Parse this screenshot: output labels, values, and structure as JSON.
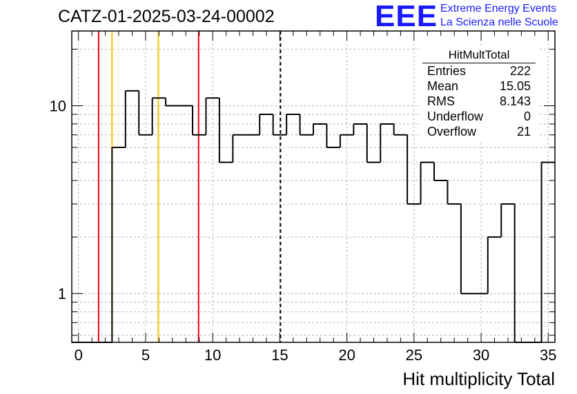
{
  "title": "CATZ-01-2025-03-24-00002",
  "logo": {
    "mark": "EEE",
    "line1": "Extreme Energy Events",
    "line2": "La Scienza nelle Scuole",
    "color": "#1a1aff"
  },
  "stats": {
    "title": "HitMultTotal",
    "rows": [
      {
        "key": "Entries",
        "value": "222"
      },
      {
        "key": "Mean",
        "value": "15.05"
      },
      {
        "key": "RMS",
        "value": "8.143"
      },
      {
        "key": "Underflow",
        "value": "0"
      },
      {
        "key": "Overflow",
        "value": "21"
      }
    ]
  },
  "chart_data": {
    "type": "histogram",
    "xlabel": "Hit multiplicity Total",
    "ylabel": "",
    "xlim": [
      -0.5,
      35.5
    ],
    "ylim": [
      0.55,
      25
    ],
    "yscale": "log",
    "grid": true,
    "bin_edges_start": -0.5,
    "bin_width": 1,
    "counts": [
      0,
      0,
      0,
      6,
      12,
      7,
      11,
      10,
      10,
      7,
      11,
      5,
      7,
      7,
      9,
      7,
      9,
      7,
      8,
      6,
      7,
      8,
      5,
      8,
      7,
      3,
      5,
      4,
      3,
      1,
      1,
      2,
      3,
      0,
      0,
      5
    ],
    "x_ticks": [
      "0",
      "5",
      "10",
      "15",
      "20",
      "25",
      "30",
      "35"
    ],
    "x_tick_values": [
      0,
      5,
      10,
      15,
      20,
      25,
      30,
      35
    ],
    "y_ticks": [
      "1",
      "10"
    ],
    "y_tick_values": [
      1,
      10
    ],
    "vertical_lines": [
      {
        "x": 1.5,
        "color": "#e8000b",
        "style": "solid"
      },
      {
        "x": 2.5,
        "color": "#f5c400",
        "style": "solid"
      },
      {
        "x": 5.95,
        "color": "#f5c400",
        "style": "solid"
      },
      {
        "x": 8.95,
        "color": "#e8000b",
        "style": "solid"
      },
      {
        "x": 15.05,
        "color": "#000000",
        "style": "dashed"
      }
    ]
  }
}
